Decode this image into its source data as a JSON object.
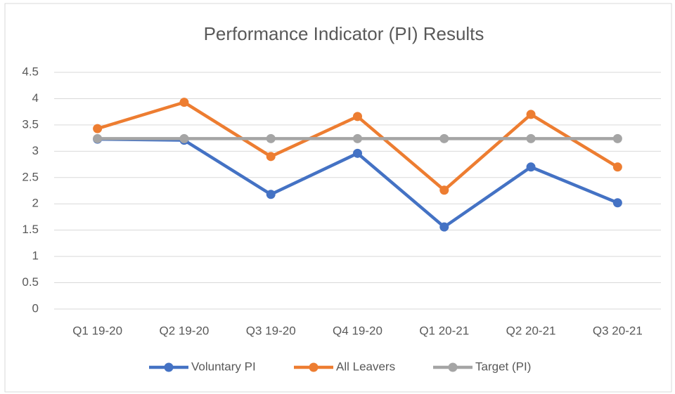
{
  "chart_data": {
    "type": "line",
    "title": "Performance Indicator (PI) Results",
    "categories": [
      "Q1 19-20",
      "Q2 19-20",
      "Q3 19-20",
      "Q4 19-20",
      "Q1 20-21",
      "Q2 20-21",
      "Q3 20-21"
    ],
    "series": [
      {
        "name": "Voluntary PI",
        "color": "#4472c4",
        "values": [
          3.23,
          3.21,
          2.18,
          2.96,
          1.56,
          2.7,
          2.02
        ]
      },
      {
        "name": "All Leavers",
        "color": "#ed7d31",
        "values": [
          3.43,
          3.93,
          2.9,
          3.66,
          2.26,
          3.7,
          2.7
        ]
      },
      {
        "name": "Target (PI)",
        "color": "#a5a5a5",
        "values": [
          3.24,
          3.24,
          3.24,
          3.24,
          3.24,
          3.24,
          3.24
        ]
      }
    ],
    "ylim": [
      0,
      4.5
    ],
    "yticks": [
      0,
      0.5,
      1,
      1.5,
      2,
      2.5,
      3,
      3.5,
      4,
      4.5
    ],
    "grid": true,
    "legend": "bottom"
  }
}
